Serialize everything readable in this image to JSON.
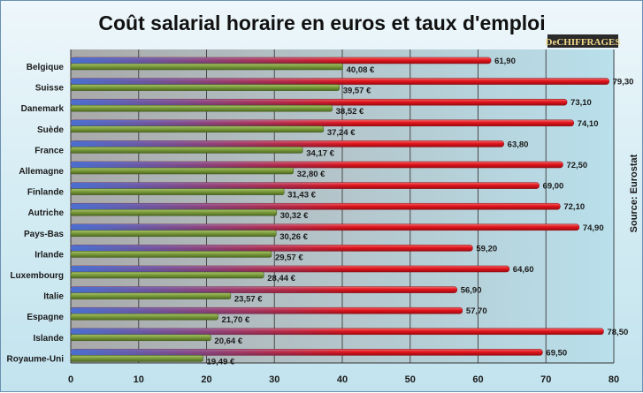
{
  "chart_data": {
    "type": "bar",
    "orientation": "horizontal",
    "title": "Coût salarial horaire en euros et taux d'emploi",
    "source": "Source: Eurostat",
    "logo": "DeCHIFFRAGES",
    "categories": [
      "Belgique",
      "Suisse",
      "Danemark",
      "Suède",
      "France",
      "Allemagne",
      "Finlande",
      "Autriche",
      "Pays-Bas",
      "Irlande",
      "Luxembourg",
      "Italie",
      "Espagne",
      "Islande",
      "Royaume-Uni"
    ],
    "series": [
      {
        "values": [
          40.08,
          39.57,
          38.52,
          37.24,
          34.17,
          32.8,
          31.43,
          30.32,
          30.26,
          29.57,
          28.44,
          23.57,
          21.7,
          20.64,
          19.49
        ],
        "labels": [
          "40,08 €",
          "39,57 €",
          "38,52 €",
          "37,24 €",
          "34,17 €",
          "32,80 €",
          "31,43 €",
          "30,32 €",
          "30,26 €",
          "29,57 €",
          "28,44 €",
          "23,57 €",
          "21,70 €",
          "20,64 €",
          "19,49 €"
        ],
        "color": "#7a9a3a"
      },
      {
        "values": [
          61.9,
          79.3,
          73.1,
          74.1,
          63.8,
          72.5,
          69.0,
          72.1,
          74.9,
          59.2,
          64.6,
          56.9,
          57.7,
          78.5,
          69.5
        ],
        "labels": [
          "61,90",
          "79,30",
          "73,10",
          "74,10",
          "63,80",
          "72,50",
          "69,00",
          "72,10",
          "74,90",
          "59,20",
          "64,60",
          "56,90",
          "57,70",
          "78,50",
          "69,50"
        ],
        "color": "#e0141c"
      }
    ],
    "xlim": [
      0,
      80
    ],
    "xticks": [
      0,
      10,
      20,
      30,
      40,
      50,
      60,
      70,
      80
    ],
    "xtick_labels": [
      "0",
      "10",
      "20",
      "30",
      "40",
      "50",
      "60",
      "70",
      "80"
    ],
    "grid": true,
    "colors": {
      "background": "#c9e7f1",
      "plot_left": "#b8b8b8",
      "gridline": "#555555"
    }
  }
}
